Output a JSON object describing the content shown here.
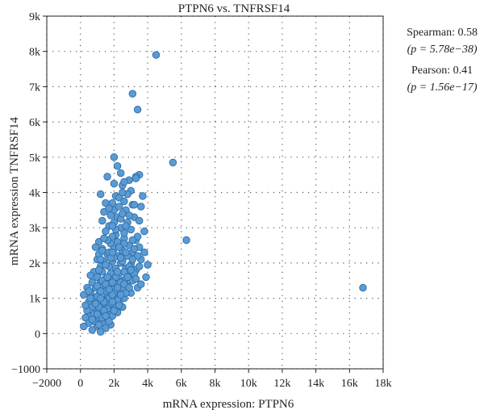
{
  "chart_data": {
    "type": "scatter",
    "title": "PTPN6 vs. TNFRSF14",
    "xlabel": "mRNA expression: PTPN6",
    "ylabel": "mRNA expression TNFRSF14",
    "xlim": [
      -2000,
      18000
    ],
    "ylim": [
      -1000,
      9000
    ],
    "xticks": [
      -2000,
      0,
      2000,
      4000,
      6000,
      8000,
      10000,
      12000,
      14000,
      16000,
      18000
    ],
    "xtick_labels": [
      "−2000",
      "0",
      "2k",
      "4k",
      "6k",
      "8k",
      "10k",
      "12k",
      "14k",
      "16k",
      "18k"
    ],
    "yticks": [
      -1000,
      0,
      1000,
      2000,
      3000,
      4000,
      5000,
      6000,
      7000,
      8000,
      9000
    ],
    "ytick_labels": [
      "−1000",
      "0",
      "1k",
      "2k",
      "3k",
      "4k",
      "5k",
      "6k",
      "7k",
      "8k",
      "9k"
    ],
    "grid": "dotted",
    "marker_color": "#5b9bd5",
    "marker_edge_color": "#2e6da4",
    "points": [
      [
        4500,
        7900
      ],
      [
        3100,
        6800
      ],
      [
        3400,
        6350
      ],
      [
        5500,
        4850
      ],
      [
        6300,
        2650
      ],
      [
        16800,
        1300
      ],
      [
        2000,
        5000
      ],
      [
        2200,
        4750
      ],
      [
        2400,
        4550
      ],
      [
        3500,
        4500
      ],
      [
        3300,
        4450
      ],
      [
        1600,
        4450
      ],
      [
        2900,
        4350
      ],
      [
        2500,
        4200
      ],
      [
        3000,
        4050
      ],
      [
        1200,
        3950
      ],
      [
        2100,
        3900
      ],
      [
        2300,
        3850
      ],
      [
        3700,
        3900
      ],
      [
        2600,
        3750
      ],
      [
        1900,
        3700
      ],
      [
        3100,
        3650
      ],
      [
        2700,
        3500
      ],
      [
        1400,
        3450
      ],
      [
        3200,
        3300
      ],
      [
        2200,
        3300
      ],
      [
        2000,
        3150
      ],
      [
        2800,
        3150
      ],
      [
        3500,
        3200
      ],
      [
        1700,
        3050
      ],
      [
        2400,
        3000
      ],
      [
        3000,
        2950
      ],
      [
        1500,
        2900
      ],
      [
        3800,
        2900
      ],
      [
        2100,
        2800
      ],
      [
        1900,
        2750
      ],
      [
        2600,
        2700
      ],
      [
        3300,
        2650
      ],
      [
        1100,
        2600
      ],
      [
        1800,
        2550
      ],
      [
        2300,
        2500
      ],
      [
        2900,
        2500
      ],
      [
        3500,
        2450
      ],
      [
        1300,
        2400
      ],
      [
        2000,
        2400
      ],
      [
        2500,
        2350
      ],
      [
        3100,
        2300
      ],
      [
        1600,
        2250
      ],
      [
        2200,
        2200
      ],
      [
        2800,
        2200
      ],
      [
        3600,
        2100
      ],
      [
        1000,
        2100
      ],
      [
        1400,
        2050
      ],
      [
        1900,
        2050
      ],
      [
        2400,
        2000
      ],
      [
        3000,
        1950
      ],
      [
        4000,
        1950
      ],
      [
        1200,
        1900
      ],
      [
        1700,
        1900
      ],
      [
        2100,
        1850
      ],
      [
        2700,
        1850
      ],
      [
        3300,
        1800
      ],
      [
        800,
        1750
      ],
      [
        1300,
        1750
      ],
      [
        1800,
        1700
      ],
      [
        2300,
        1700
      ],
      [
        2900,
        1650
      ],
      [
        3900,
        1600
      ],
      [
        1000,
        1600
      ],
      [
        1500,
        1550
      ],
      [
        2000,
        1550
      ],
      [
        2500,
        1500
      ],
      [
        3100,
        1500
      ],
      [
        700,
        1450
      ],
      [
        1200,
        1450
      ],
      [
        1700,
        1400
      ],
      [
        2200,
        1400
      ],
      [
        2800,
        1350
      ],
      [
        3400,
        1300
      ],
      [
        400,
        1300
      ],
      [
        900,
        1300
      ],
      [
        1400,
        1250
      ],
      [
        1900,
        1250
      ],
      [
        2400,
        1200
      ],
      [
        3000,
        1150
      ],
      [
        600,
        1150
      ],
      [
        1100,
        1100
      ],
      [
        1600,
        1100
      ],
      [
        2100,
        1050
      ],
      [
        2600,
        1000
      ],
      [
        200,
        1100
      ],
      [
        800,
        1000
      ],
      [
        1300,
        950
      ],
      [
        1800,
        950
      ],
      [
        2300,
        900
      ],
      [
        500,
        900
      ],
      [
        1000,
        850
      ],
      [
        1500,
        800
      ],
      [
        2000,
        800
      ],
      [
        2500,
        750
      ],
      [
        700,
        750
      ],
      [
        1200,
        700
      ],
      [
        1700,
        650
      ],
      [
        2200,
        600
      ],
      [
        400,
        650
      ],
      [
        900,
        600
      ],
      [
        1400,
        550
      ],
      [
        1900,
        500
      ],
      [
        600,
        500
      ],
      [
        1100,
        450
      ],
      [
        1600,
        400
      ],
      [
        300,
        450
      ],
      [
        800,
        350
      ],
      [
        1300,
        300
      ],
      [
        1800,
        250
      ],
      [
        500,
        300
      ],
      [
        1000,
        200
      ],
      [
        1500,
        150
      ],
      [
        200,
        200
      ],
      [
        700,
        100
      ],
      [
        1200,
        50
      ],
      [
        2600,
        4300
      ],
      [
        2800,
        3950
      ],
      [
        3200,
        3650
      ],
      [
        1500,
        3700
      ],
      [
        2000,
        3500
      ],
      [
        3600,
        3600
      ],
      [
        2400,
        3250
      ],
      [
        1300,
        3200
      ],
      [
        2700,
        3050
      ],
      [
        3400,
        2750
      ],
      [
        1600,
        2650
      ],
      [
        2200,
        2600
      ],
      [
        2600,
        2550
      ],
      [
        900,
        2450
      ],
      [
        3200,
        2400
      ],
      [
        1700,
        2300
      ],
      [
        2700,
        2300
      ],
      [
        1100,
        2250
      ],
      [
        3400,
        2200
      ],
      [
        2000,
        2150
      ],
      [
        2500,
        2050
      ],
      [
        3500,
        1900
      ],
      [
        1500,
        1950
      ],
      [
        1100,
        1800
      ],
      [
        2600,
        1750
      ],
      [
        3200,
        1700
      ],
      [
        600,
        1650
      ],
      [
        2100,
        1600
      ],
      [
        2700,
        1550
      ],
      [
        1300,
        1500
      ],
      [
        1900,
        1450
      ],
      [
        3600,
        1400
      ],
      [
        1000,
        1350
      ],
      [
        2500,
        1300
      ],
      [
        1500,
        1200
      ],
      [
        2000,
        1150
      ],
      [
        2700,
        1150
      ],
      [
        1000,
        1050
      ],
      [
        1700,
        1000
      ],
      [
        2200,
        950
      ],
      [
        1400,
        900
      ],
      [
        1800,
        850
      ],
      [
        2300,
        800
      ],
      [
        1100,
        750
      ],
      [
        1600,
        700
      ],
      [
        2000,
        650
      ],
      [
        800,
        550
      ],
      [
        1300,
        450
      ],
      [
        1700,
        350
      ],
      [
        1100,
        250
      ],
      [
        1400,
        650
      ],
      [
        900,
        850
      ],
      [
        1600,
        1600
      ],
      [
        2200,
        1750
      ],
      [
        2900,
        1900
      ],
      [
        1200,
        2100
      ],
      [
        1800,
        2150
      ],
      [
        2300,
        2450
      ],
      [
        1400,
        2700
      ],
      [
        2100,
        2950
      ],
      [
        2900,
        3350
      ],
      [
        1800,
        3350
      ],
      [
        2300,
        3600
      ],
      [
        2500,
        4000
      ],
      [
        2000,
        4250
      ],
      [
        3300,
        4400
      ],
      [
        600,
        1000
      ],
      [
        300,
        800
      ],
      [
        500,
        1200
      ],
      [
        1900,
        1100
      ],
      [
        2400,
        1450
      ],
      [
        2800,
        1600
      ],
      [
        3000,
        1800
      ],
      [
        1500,
        1400
      ],
      [
        1200,
        1200
      ],
      [
        1700,
        1250
      ],
      [
        2200,
        1300
      ],
      [
        2600,
        1400
      ],
      [
        3300,
        1550
      ],
      [
        1000,
        550
      ],
      [
        1500,
        500
      ],
      [
        700,
        400
      ],
      [
        1200,
        1000
      ],
      [
        1900,
        900
      ],
      [
        2400,
        1100
      ],
      [
        2900,
        1300
      ],
      [
        3800,
        2300
      ],
      [
        3100,
        2100
      ],
      [
        2400,
        2150
      ],
      [
        1900,
        2300
      ],
      [
        1300,
        2350
      ],
      [
        2600,
        2850
      ],
      [
        3100,
        2650
      ],
      [
        1900,
        3050
      ],
      [
        2500,
        3400
      ],
      [
        1700,
        3550
      ]
    ]
  },
  "stats": {
    "spearman_label": "Spearman: 0.58",
    "spearman_p": "(p = 5.78e−38)",
    "pearson_label": "Pearson: 0.41",
    "pearson_p": "(p = 1.56e−17)"
  }
}
